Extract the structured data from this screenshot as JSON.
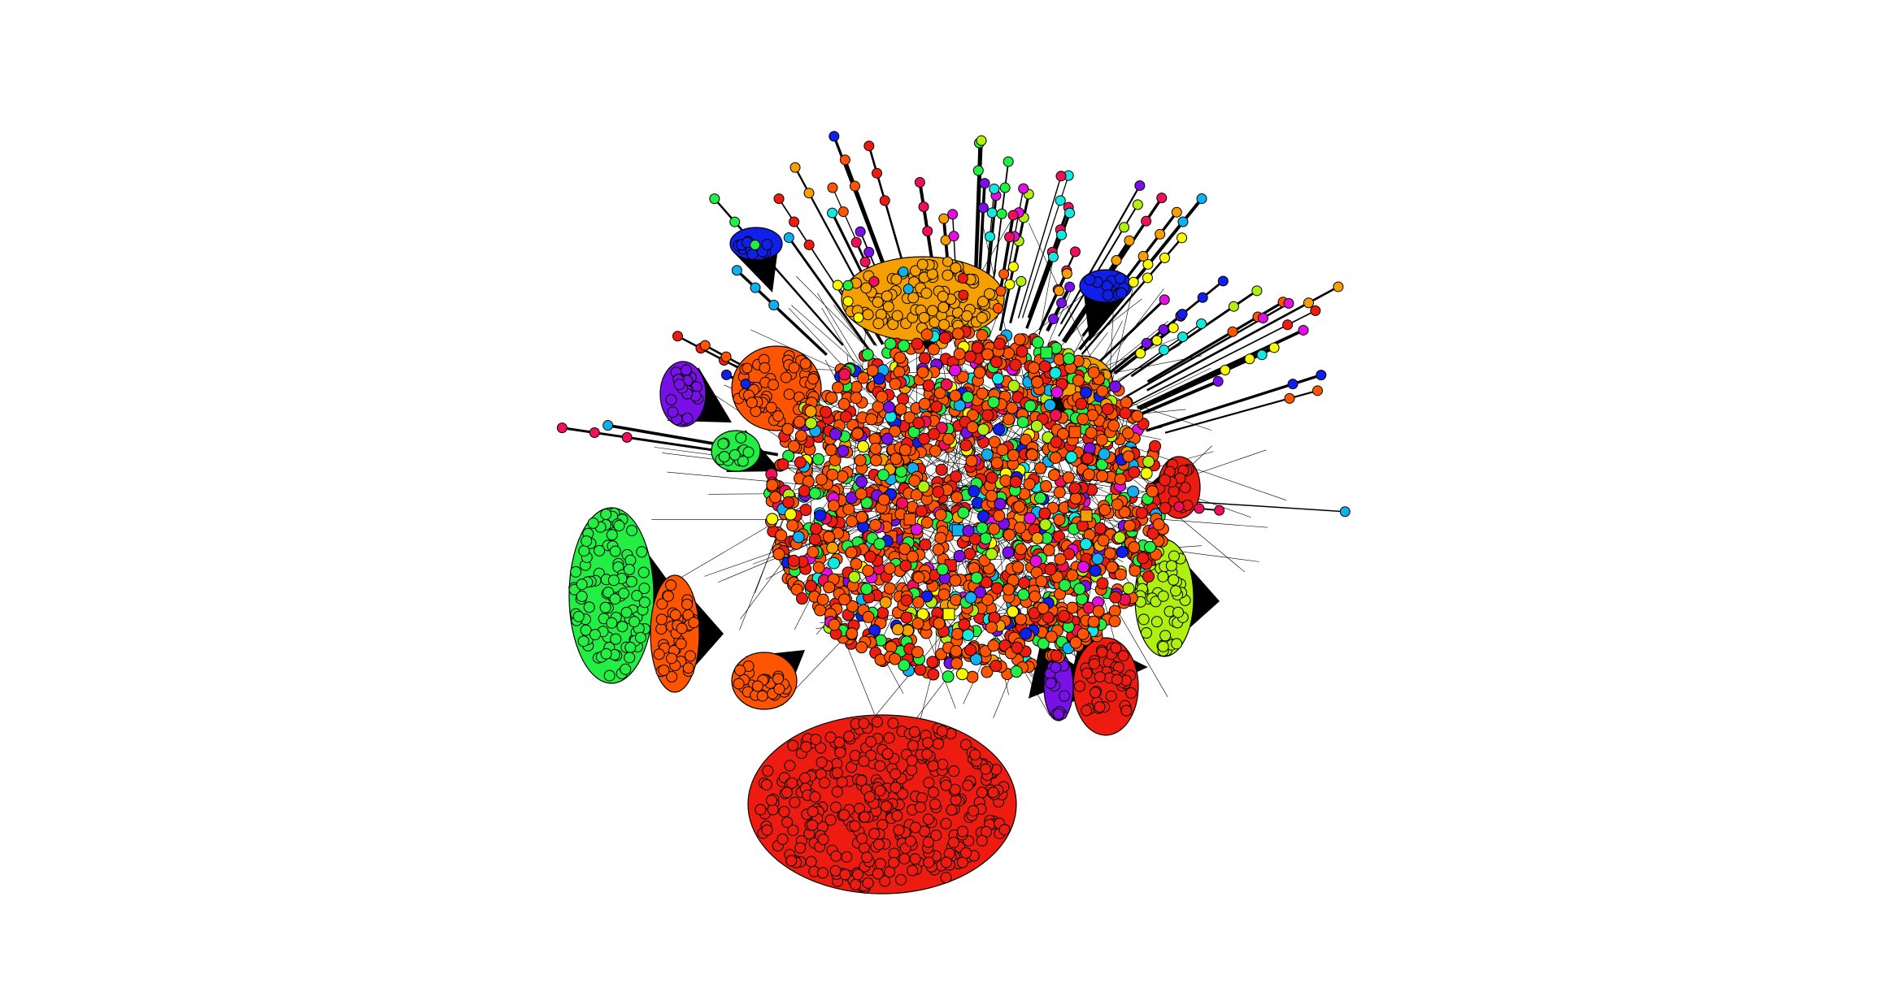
{
  "diagram": {
    "type": "network-graph",
    "background": "#ffffff",
    "edge_color": "#000000",
    "node_outline_color": "#000000",
    "node_shapes": [
      "circle",
      "square"
    ],
    "node_colors": {
      "red": "#ee1c10",
      "orange_red": "#ff5500",
      "orange": "#f5a000",
      "yellow": "#f8f800",
      "yellow_green": "#b0f010",
      "green": "#22ee44",
      "cyan": "#10e8e0",
      "sky_blue": "#10b0f0",
      "blue": "#1020e8",
      "violet": "#7a10e8",
      "magenta": "#e010e0",
      "crimson": "#f0105a"
    },
    "clusters": [
      {
        "name": "bottom-large-cluster",
        "color": "red"
      },
      {
        "name": "top-cluster",
        "color": "orange"
      },
      {
        "name": "left-cluster",
        "color": "green"
      },
      {
        "name": "left-lower-cluster",
        "color": "orange_red"
      },
      {
        "name": "right-cluster",
        "color": "yellow_green"
      },
      {
        "name": "right-lower-cluster",
        "color": "red"
      },
      {
        "name": "upper-left-cluster",
        "color": "orange_red"
      },
      {
        "name": "upper-left-violet-cluster",
        "color": "violet"
      },
      {
        "name": "upper-left-blue-cluster",
        "color": "blue"
      },
      {
        "name": "upper-right-blue-cluster",
        "color": "blue"
      },
      {
        "name": "upper-right-orange-cluster",
        "color": "orange"
      },
      {
        "name": "lower-violet-cluster",
        "color": "violet"
      },
      {
        "name": "right-red-cluster",
        "color": "red"
      },
      {
        "name": "left-green-small-cluster",
        "color": "green"
      },
      {
        "name": "lower-left-orange-cluster",
        "color": "orange_red"
      }
    ]
  }
}
